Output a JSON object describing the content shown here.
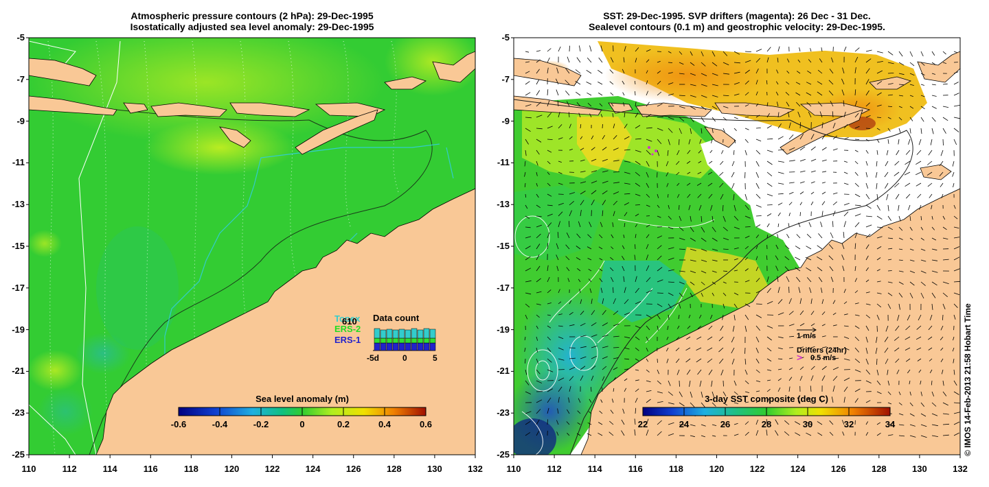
{
  "left_panel": {
    "title_line1": "Atmospheric pressure contours (2 hPa): 29-Dec-1995",
    "title_line2": "Isostatically adjusted sea level anomaly: 29-Dec-1995",
    "colorbar_label": "Sea level anomaly (m)",
    "colorbar_ticks": [
      "-0.6",
      "-0.4",
      "-0.2",
      "0",
      "0.2",
      "0.4",
      "0.6"
    ],
    "data_count": {
      "title": "Data count",
      "count_value": "610",
      "series": [
        {
          "name": "Topex",
          "color": "#33cccc"
        },
        {
          "name": "ERS-2",
          "color": "#33dd33"
        },
        {
          "name": "ERS-1",
          "color": "#2222cc"
        }
      ],
      "axis_ticks": [
        "-5d",
        "0",
        "5"
      ]
    }
  },
  "right_panel": {
    "title_line1": "SST: 29-Dec-1995. SVP drifters (magenta): 26 Dec - 31 Dec.",
    "title_line2": "Sealevel contours (0.1 m) and geostrophic velocity: 29-Dec-1995.",
    "colorbar_label": "3-day SST composite (deg C)",
    "colorbar_ticks": [
      "22",
      "24",
      "26",
      "28",
      "30",
      "32",
      "34"
    ],
    "velocity_scale_label": "1 m/s",
    "drifters_label": "Drifters (24hr)",
    "drifter_speed_label": "0.5 m/s",
    "drifter_marker": ">"
  },
  "axes": {
    "lat_ticks": [
      "-5",
      "-7",
      "-9",
      "-11",
      "-13",
      "-15",
      "-17",
      "-19",
      "-21",
      "-23",
      "-25"
    ],
    "lon_ticks": [
      "110",
      "112",
      "114",
      "116",
      "118",
      "120",
      "122",
      "124",
      "126",
      "128",
      "130",
      "132"
    ]
  },
  "credit": "© IMOS 14-Feb-2013 21:58 Hobart Time",
  "colors": {
    "land": "#f9c896",
    "ocean_left": "#33cc33",
    "ocean_right": "#ffffff",
    "drifter": "#cc33cc"
  }
}
